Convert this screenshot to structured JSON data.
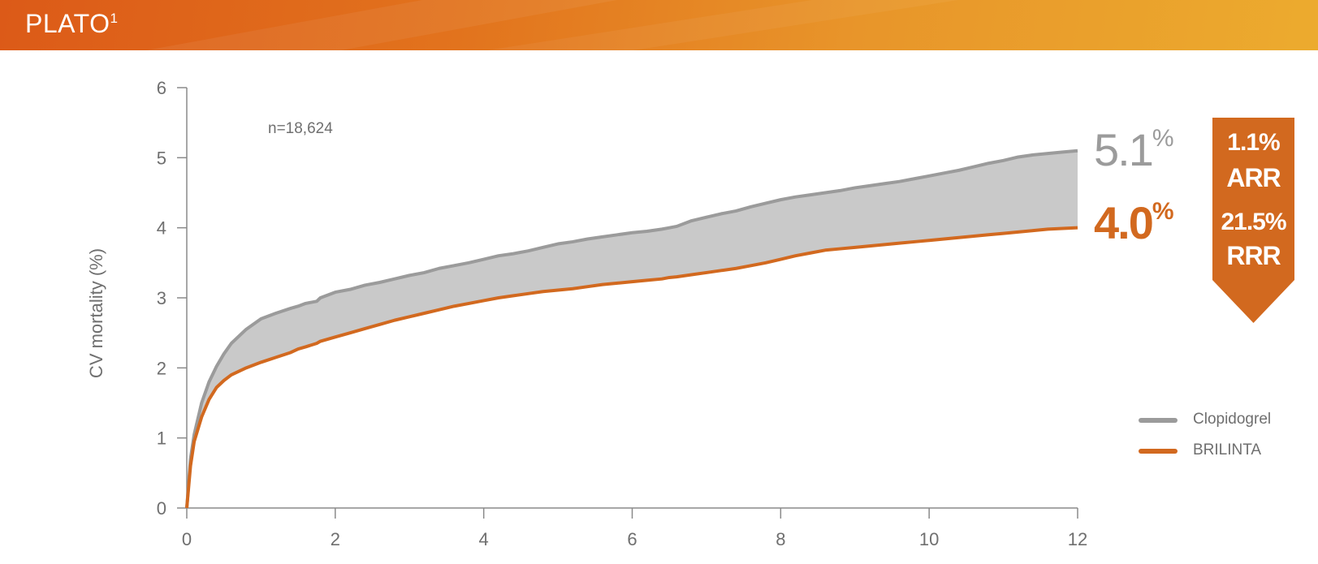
{
  "header": {
    "title": "PLATO",
    "title_sup": "1"
  },
  "chart_data": {
    "type": "line",
    "ylabel": "CV mortality (%)",
    "xlabel": "",
    "xlim": [
      0,
      12
    ],
    "ylim": [
      0,
      6
    ],
    "x_ticks": [
      0,
      2,
      4,
      6,
      8,
      10,
      12
    ],
    "y_ticks": [
      0,
      1,
      2,
      3,
      4,
      5,
      6
    ],
    "annotation": "n=18,624",
    "shaded_between_series": true,
    "series": [
      {
        "name": "Clopidogrel",
        "color": "#9b9b9b",
        "end_label": "5.1",
        "end_label_unit": "%",
        "x": [
          0,
          0.05,
          0.1,
          0.2,
          0.3,
          0.4,
          0.5,
          0.6,
          0.8,
          1.0,
          1.2,
          1.4,
          1.5,
          1.6,
          1.75,
          1.8,
          2.0,
          2.2,
          2.4,
          2.6,
          2.8,
          3.0,
          3.2,
          3.4,
          3.6,
          3.8,
          4.0,
          4.2,
          4.4,
          4.6,
          4.8,
          5.0,
          5.2,
          5.4,
          5.6,
          5.8,
          6.0,
          6.2,
          6.4,
          6.5,
          6.6,
          6.8,
          7.0,
          7.2,
          7.4,
          7.6,
          7.8,
          8.0,
          8.2,
          8.4,
          8.6,
          8.8,
          9.0,
          9.2,
          9.4,
          9.6,
          9.8,
          10.0,
          10.2,
          10.4,
          10.6,
          10.8,
          11.0,
          11.2,
          11.4,
          11.6,
          11.8,
          12.0
        ],
        "y": [
          0,
          0.7,
          1.05,
          1.5,
          1.8,
          2.02,
          2.2,
          2.35,
          2.55,
          2.7,
          2.78,
          2.85,
          2.88,
          2.92,
          2.95,
          3.0,
          3.08,
          3.12,
          3.18,
          3.22,
          3.27,
          3.32,
          3.36,
          3.42,
          3.46,
          3.5,
          3.55,
          3.6,
          3.63,
          3.67,
          3.72,
          3.77,
          3.8,
          3.84,
          3.87,
          3.9,
          3.93,
          3.95,
          3.98,
          4.0,
          4.02,
          4.1,
          4.15,
          4.2,
          4.24,
          4.3,
          4.35,
          4.4,
          4.44,
          4.47,
          4.5,
          4.53,
          4.57,
          4.6,
          4.63,
          4.66,
          4.7,
          4.74,
          4.78,
          4.82,
          4.87,
          4.92,
          4.96,
          5.01,
          5.04,
          5.06,
          5.08,
          5.1
        ]
      },
      {
        "name": "BRILINTA",
        "color": "#d2691f",
        "end_label": "4.0",
        "end_label_unit": "%",
        "x": [
          0,
          0.05,
          0.1,
          0.2,
          0.3,
          0.4,
          0.5,
          0.6,
          0.8,
          1.0,
          1.2,
          1.4,
          1.5,
          1.6,
          1.75,
          1.8,
          2.0,
          2.2,
          2.4,
          2.6,
          2.8,
          3.0,
          3.2,
          3.4,
          3.6,
          3.8,
          4.0,
          4.2,
          4.4,
          4.6,
          4.8,
          5.0,
          5.2,
          5.4,
          5.6,
          5.8,
          6.0,
          6.2,
          6.4,
          6.5,
          6.6,
          6.8,
          7.0,
          7.2,
          7.4,
          7.6,
          7.8,
          8.0,
          8.2,
          8.4,
          8.6,
          8.8,
          9.0,
          9.2,
          9.4,
          9.6,
          9.8,
          10.0,
          10.2,
          10.4,
          10.6,
          10.8,
          11.0,
          11.2,
          11.4,
          11.6,
          11.8,
          12.0
        ],
        "y": [
          0,
          0.6,
          0.95,
          1.3,
          1.55,
          1.72,
          1.82,
          1.9,
          2.0,
          2.08,
          2.15,
          2.22,
          2.27,
          2.3,
          2.35,
          2.38,
          2.44,
          2.5,
          2.56,
          2.62,
          2.68,
          2.73,
          2.78,
          2.83,
          2.88,
          2.92,
          2.96,
          3.0,
          3.03,
          3.06,
          3.09,
          3.11,
          3.13,
          3.16,
          3.19,
          3.21,
          3.23,
          3.25,
          3.27,
          3.29,
          3.3,
          3.33,
          3.36,
          3.39,
          3.42,
          3.46,
          3.5,
          3.55,
          3.6,
          3.64,
          3.68,
          3.7,
          3.72,
          3.74,
          3.76,
          3.78,
          3.8,
          3.82,
          3.84,
          3.86,
          3.88,
          3.9,
          3.92,
          3.94,
          3.96,
          3.98,
          3.99,
          4.0
        ]
      }
    ]
  },
  "badge": {
    "arr_value": "1.1%",
    "arr_label": "ARR",
    "rrr_value": "21.5%",
    "rrr_label": "RRR",
    "color": "#d2691f"
  },
  "legend": [
    {
      "label": "Clopidogrel",
      "color": "#9b9b9b"
    },
    {
      "label": "BRILINTA",
      "color": "#d2691f"
    }
  ]
}
